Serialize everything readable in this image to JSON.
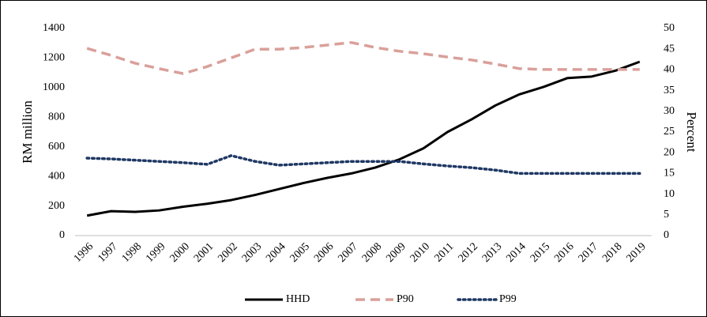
{
  "chart_data": {
    "type": "line",
    "categories": [
      "1996",
      "1997",
      "1998",
      "1999",
      "2000",
      "2001",
      "2002",
      "2003",
      "2004",
      "2005",
      "2006",
      "2007",
      "2008",
      "2009",
      "2010",
      "2011",
      "2012",
      "2013",
      "2014",
      "2015",
      "2016",
      "2017",
      "2018",
      "2019"
    ],
    "y_label": "RM million",
    "y2_label": "Percent",
    "ylim": [
      0,
      1400
    ],
    "yticks": [
      0,
      200,
      400,
      600,
      800,
      1000,
      1200,
      1400
    ],
    "y2lim": [
      0,
      50
    ],
    "y2ticks": [
      0,
      5,
      10,
      15,
      20,
      25,
      30,
      35,
      40,
      45,
      50
    ],
    "grid": false,
    "legend": "bottom",
    "series": [
      {
        "name": "HHD",
        "color": "#000000",
        "style": "solid",
        "values": [
          135,
          165,
          160,
          170,
          195,
          215,
          240,
          275,
          315,
          355,
          390,
          420,
          460,
          515,
          590,
          700,
          785,
          880,
          955,
          1005,
          1065,
          1075,
          1115,
          1175
        ]
      },
      {
        "name": "P90",
        "color": "#d9a09a",
        "style": "dashed",
        "axis": "y2",
        "values": [
          45.2,
          43.5,
          41.6,
          40.3,
          39.1,
          40.8,
          42.9,
          45,
          45,
          45.4,
          46,
          46.6,
          45.4,
          44.5,
          43.9,
          43.1,
          42.4,
          41.4,
          40.3,
          40.1,
          40.1,
          40.1,
          40.1,
          40.1
        ]
      },
      {
        "name": "P99",
        "color": "#1f3864",
        "style": "dotted",
        "axis": "y2",
        "values": [
          18.7,
          18.5,
          18.2,
          17.9,
          17.6,
          17.2,
          19.3,
          17.9,
          17,
          17.3,
          17.6,
          17.9,
          17.9,
          17.9,
          17.3,
          16.8,
          16.4,
          15.8,
          15,
          15,
          15,
          15,
          15,
          15
        ]
      }
    ]
  }
}
